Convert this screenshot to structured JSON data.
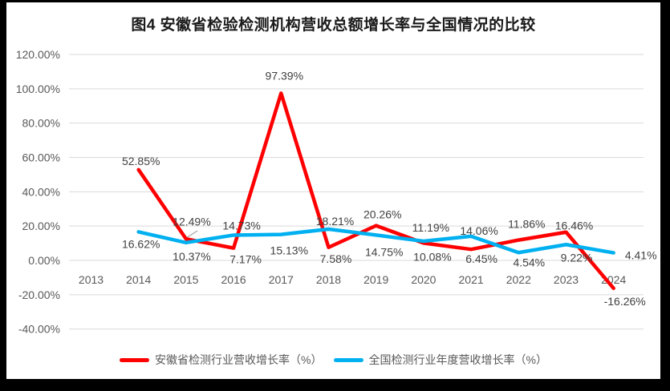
{
  "chart_data": {
    "type": "line",
    "title": "图4 安徽省检验检测机构营收总额增长率与全国情况的比较",
    "categories": [
      "2013",
      "2014",
      "2015",
      "2016",
      "2017",
      "2018",
      "2019",
      "2020",
      "2021",
      "2022",
      "2023",
      "2024"
    ],
    "series": [
      {
        "name": "安徽省检测行业营收增长率（%）",
        "color": "#FF0000",
        "values": [
          null,
          52.85,
          12.49,
          7.17,
          97.39,
          7.58,
          20.26,
          10.08,
          6.45,
          11.86,
          16.46,
          -16.26
        ]
      },
      {
        "name": "全国检测行业年度营收增长率（%）",
        "color": "#00B0F0",
        "values": [
          null,
          16.62,
          10.37,
          14.73,
          15.13,
          18.21,
          14.75,
          11.19,
          14.06,
          4.54,
          9.22,
          4.41
        ]
      }
    ],
    "ylim": [
      -40,
      120
    ],
    "ytick_step": 20,
    "ytick_format": "percent-2-decimals",
    "data_label_format": "percent-2-decimals",
    "grid": "horizontal",
    "legend_position": "bottom"
  },
  "colors": {
    "frame": "#000000",
    "canvas": "#FFFFFF",
    "grid": "#D9D9D9",
    "axis_text": "#595959",
    "data_label_text": "#404040",
    "leader_line": "#A6A6A6",
    "title_text": "#1A1A1A"
  }
}
